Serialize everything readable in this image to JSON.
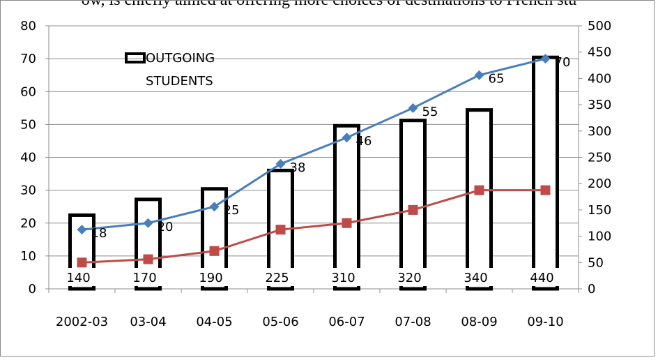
{
  "caption": "ow, is chiefly aimed at offering more choices of destinations to French stu",
  "chart_data": {
    "type": "bar",
    "categories": [
      "2002-03",
      "03-04",
      "04-05",
      "05-06",
      "06-07",
      "07-08",
      "08-09",
      "09-10"
    ],
    "left_axis": {
      "ylim": [
        0,
        80
      ],
      "ticks": [
        0,
        10,
        20,
        30,
        40,
        50,
        60,
        70,
        80
      ]
    },
    "right_axis": {
      "ylim": [
        0,
        500
      ],
      "ticks": [
        0,
        50,
        100,
        150,
        200,
        250,
        300,
        350,
        400,
        450,
        500
      ]
    },
    "grid": true,
    "legend": {
      "position": "top-left",
      "label_line1": "OUTGOING",
      "label_line2": "STUDENTS"
    },
    "series": [
      {
        "name": "OUTGOING STUDENTS",
        "type": "bar",
        "axis": "right",
        "values": [
          140,
          170,
          190,
          225,
          310,
          320,
          340,
          440
        ],
        "labels": [
          "140",
          "170",
          "190",
          "225",
          "310",
          "320",
          "340",
          "440"
        ]
      },
      {
        "type": "line",
        "axis": "left",
        "color": "#4a7ebb",
        "marker": "diamond",
        "values": [
          18,
          20,
          25,
          38,
          46,
          55,
          65,
          70
        ],
        "labels": [
          "18",
          "20",
          "25",
          "38",
          "46",
          "55",
          "65",
          "70"
        ]
      },
      {
        "type": "line",
        "axis": "left",
        "color": "#be4b48",
        "marker": "square",
        "values": [
          8,
          9,
          11.5,
          18,
          20,
          24,
          30,
          30
        ]
      }
    ]
  }
}
